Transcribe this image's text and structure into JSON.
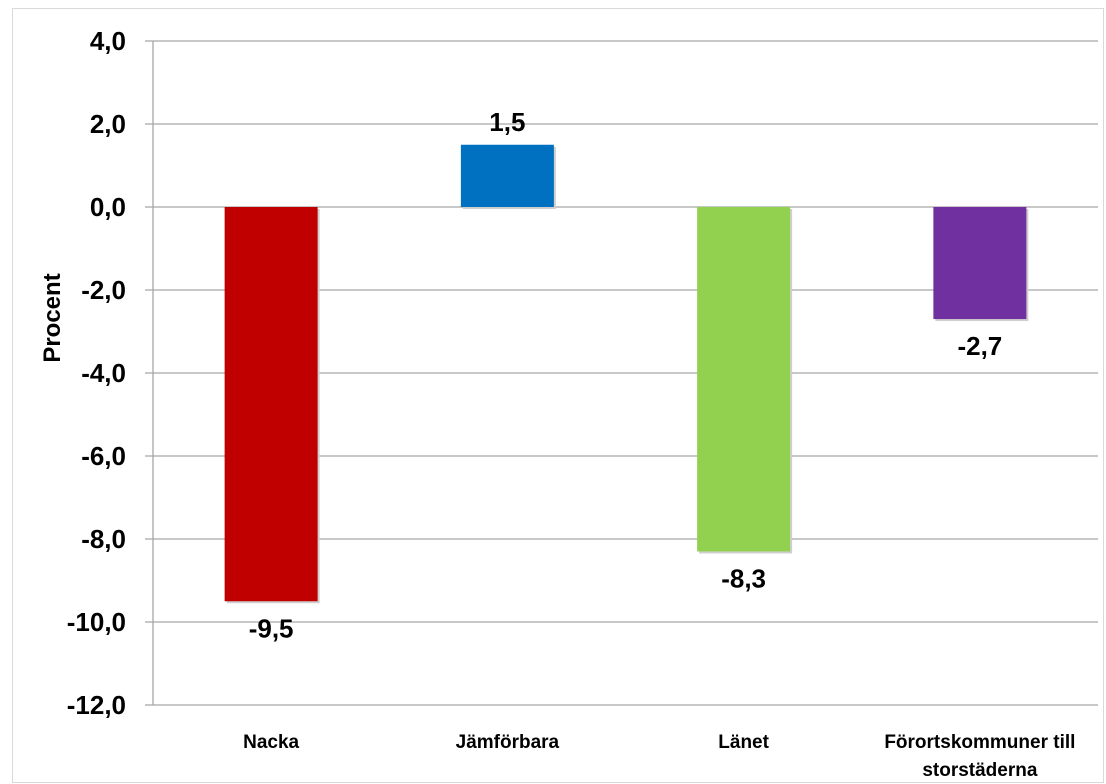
{
  "chart_data": {
    "type": "bar",
    "title": "",
    "xlabel": "",
    "ylabel": "Procent",
    "categories": [
      "Nacka",
      "Jämförbara",
      "Länet",
      "Förortskommuner till storstäderna"
    ],
    "category_lines": [
      [
        "Nacka"
      ],
      [
        "Jämförbara"
      ],
      [
        "Länet"
      ],
      [
        "Förortskommuner till",
        "storstäderna"
      ]
    ],
    "values": [
      -9.5,
      1.5,
      -8.3,
      -2.7
    ],
    "value_labels": [
      "-9,5",
      "1,5",
      "-8,3",
      "-2,7"
    ],
    "colors": [
      "#C00000",
      "#0070C0",
      "#92D050",
      "#7030A0"
    ],
    "ylim": [
      -12,
      4
    ],
    "yticks": [
      4,
      2,
      0,
      -2,
      -4,
      -6,
      -8,
      -10,
      -12
    ],
    "ytick_labels": [
      "4,0",
      "2,0",
      "0,0",
      "-2,0",
      "-4,0",
      "-6,0",
      "-8,0",
      "-10,0",
      "-12,0"
    ],
    "grid": true,
    "gridline_color": "#a6a6a6",
    "legend": false
  }
}
